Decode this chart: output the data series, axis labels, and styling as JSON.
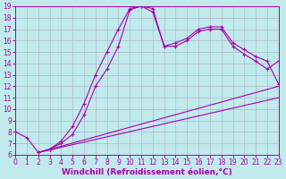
{
  "xlabel": "Windchill (Refroidissement éolien,°C)",
  "xlim": [
    0,
    23
  ],
  "ylim": [
    6,
    19
  ],
  "xticks": [
    0,
    1,
    2,
    3,
    4,
    5,
    6,
    7,
    8,
    9,
    10,
    11,
    12,
    13,
    14,
    15,
    16,
    17,
    18,
    19,
    20,
    21,
    22,
    23
  ],
  "yticks": [
    6,
    7,
    8,
    9,
    10,
    11,
    12,
    13,
    14,
    15,
    16,
    17,
    18,
    19
  ],
  "background_color": "#c0eaec",
  "grid_color": "#b0b8cc",
  "line_color": "#aa00aa",
  "curve1_x": [
    0,
    1,
    2,
    3,
    4,
    5,
    6,
    7,
    8,
    9,
    10,
    11,
    12,
    13,
    14,
    15,
    16,
    17,
    18,
    19,
    20,
    21,
    22,
    23
  ],
  "curve1_y": [
    8.0,
    7.5,
    6.2,
    6.5,
    7.2,
    8.5,
    10.5,
    13.0,
    15.0,
    17.0,
    18.8,
    19.0,
    18.5,
    15.5,
    15.8,
    16.2,
    17.0,
    17.2,
    17.2,
    15.8,
    15.2,
    14.6,
    14.2,
    12.2
  ],
  "curve2_x": [
    2,
    3,
    4,
    5,
    6,
    7,
    8,
    9,
    10,
    11,
    12,
    13,
    14,
    15,
    16,
    17,
    18,
    19,
    20,
    21,
    22,
    23
  ],
  "curve2_y": [
    6.2,
    6.5,
    7.0,
    7.8,
    9.5,
    12.0,
    13.5,
    15.5,
    18.7,
    19.0,
    18.8,
    15.5,
    15.5,
    16.0,
    16.8,
    17.0,
    17.0,
    15.5,
    14.8,
    14.2,
    13.5,
    14.2
  ],
  "curve3_x": [
    2,
    23
  ],
  "curve3_y": [
    6.2,
    12.0
  ],
  "curve4_x": [
    2,
    23
  ],
  "curve4_y": [
    6.2,
    11.0
  ],
  "fontsize_tick": 5.5,
  "fontsize_xlabel": 6.5
}
